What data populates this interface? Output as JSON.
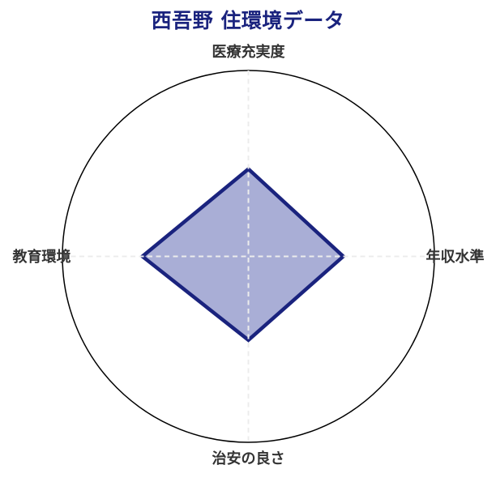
{
  "title": "西吾野 住環境データ",
  "chart_data": {
    "type": "radar",
    "categories": [
      "医療充実度",
      "年収水準",
      "治安の良さ",
      "教育環境"
    ],
    "category_positions": [
      "top",
      "right",
      "bottom",
      "left"
    ],
    "values": [
      0.47,
      0.51,
      0.45,
      0.57
    ],
    "range": [
      0,
      1
    ],
    "grid": "outer circle plus dashed horizontal and vertical axis lines, no radial tick labels, no inner rings",
    "legend": null,
    "colors": {
      "title": "#1a237e",
      "polygon_stroke": "#1a237e",
      "polygon_fill": "#a9aed6",
      "outer_circle": "#000000",
      "gridline": "#ececec",
      "axis_label": "#333333",
      "background": "#ffffff"
    }
  }
}
